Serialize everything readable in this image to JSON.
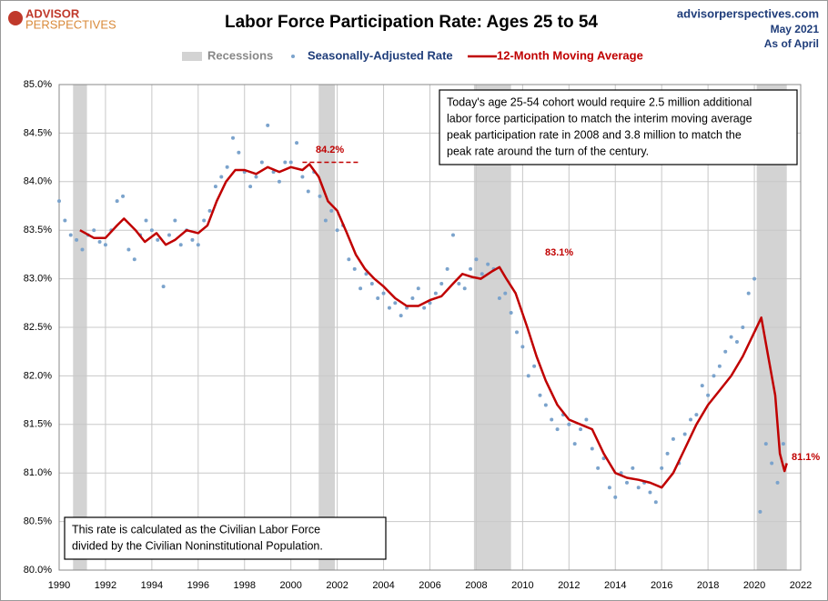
{
  "chart_data": {
    "type": "scatter-line",
    "title": "Labor Force Participation Rate: Ages 25 to 54",
    "logo": [
      "ADVISOR",
      "PERSPECTIVES"
    ],
    "source": [
      "advisorperspectives.com",
      "May 2021",
      "As of April"
    ],
    "recessions_label": "Recessions",
    "recession_color": "#d3d3d3",
    "recessions": [
      [
        1990.6,
        1991.2
      ],
      [
        2001.2,
        2001.9
      ],
      [
        2007.9,
        2009.5
      ],
      [
        2020.1,
        2021.4
      ]
    ],
    "xlim": [
      1990,
      2022
    ],
    "xticks": [
      1990,
      1992,
      1994,
      1996,
      1998,
      2000,
      2002,
      2004,
      2006,
      2008,
      2010,
      2012,
      2014,
      2016,
      2018,
      2020,
      2022
    ],
    "ylim": [
      80,
      85
    ],
    "yticks": [
      {
        "value": 80,
        "label": "80.0%"
      },
      {
        "value": 80.5,
        "label": "80.5%"
      },
      {
        "value": 81,
        "label": "81.0%"
      },
      {
        "value": 81.5,
        "label": "81.5%"
      },
      {
        "value": 82,
        "label": "82.0%"
      },
      {
        "value": 82.5,
        "label": "82.5%"
      },
      {
        "value": 83,
        "label": "83.0%"
      },
      {
        "value": 83.5,
        "label": "83.5%"
      },
      {
        "value": 84,
        "label": "84.0%"
      },
      {
        "value": 84.5,
        "label": "84.5%"
      },
      {
        "value": 85,
        "label": "85.0%"
      }
    ],
    "grid": true,
    "series": [
      {
        "name": "Seasonally-Adjusted Rate",
        "kind": "scatter",
        "color": "#7ba3cc",
        "x": [
          1990.0,
          1990.25,
          1990.5,
          1990.75,
          1991.0,
          1991.25,
          1991.5,
          1991.75,
          1992.0,
          1992.25,
          1992.5,
          1992.75,
          1993.0,
          1993.25,
          1993.5,
          1993.75,
          1994.0,
          1994.25,
          1994.5,
          1994.75,
          1995.0,
          1995.25,
          1995.5,
          1995.75,
          1996.0,
          1996.25,
          1996.5,
          1996.75,
          1997.0,
          1997.25,
          1997.5,
          1997.75,
          1998.0,
          1998.25,
          1998.5,
          1998.75,
          1999.0,
          1999.25,
          1999.5,
          1999.75,
          2000.0,
          2000.25,
          2000.5,
          2000.75,
          2001.0,
          2001.25,
          2001.5,
          2001.75,
          2002.0,
          2002.25,
          2002.5,
          2002.75,
          2003.0,
          2003.25,
          2003.5,
          2003.75,
          2004.0,
          2004.25,
          2004.5,
          2004.75,
          2005.0,
          2005.25,
          2005.5,
          2005.75,
          2006.0,
          2006.25,
          2006.5,
          2006.75,
          2007.0,
          2007.25,
          2007.5,
          2007.75,
          2008.0,
          2008.25,
          2008.5,
          2008.75,
          2009.0,
          2009.25,
          2009.5,
          2009.75,
          2010.0,
          2010.25,
          2010.5,
          2010.75,
          2011.0,
          2011.25,
          2011.5,
          2011.75,
          2012.0,
          2012.25,
          2012.5,
          2012.75,
          2013.0,
          2013.25,
          2013.5,
          2013.75,
          2014.0,
          2014.25,
          2014.5,
          2014.75,
          2015.0,
          2015.25,
          2015.5,
          2015.75,
          2016.0,
          2016.25,
          2016.5,
          2016.75,
          2017.0,
          2017.25,
          2017.5,
          2017.75,
          2018.0,
          2018.25,
          2018.5,
          2018.75,
          2019.0,
          2019.25,
          2019.5,
          2019.75,
          2020.0,
          2020.25,
          2020.5,
          2020.75,
          2021.0,
          2021.25
        ],
        "values": [
          83.8,
          83.6,
          83.45,
          83.4,
          83.3,
          83.45,
          83.5,
          83.38,
          83.35,
          83.5,
          83.8,
          83.85,
          83.3,
          83.2,
          83.45,
          83.6,
          83.5,
          83.4,
          82.92,
          83.45,
          83.6,
          83.35,
          83.5,
          83.4,
          83.35,
          83.6,
          83.7,
          83.95,
          84.05,
          84.15,
          84.45,
          84.3,
          84.1,
          83.95,
          84.05,
          84.2,
          84.58,
          84.1,
          84.0,
          84.2,
          84.2,
          84.4,
          84.05,
          83.9,
          84.1,
          83.85,
          83.6,
          83.7,
          83.5,
          83.55,
          83.2,
          83.1,
          82.9,
          83.05,
          82.95,
          82.8,
          82.85,
          82.7,
          82.75,
          82.62,
          82.7,
          82.8,
          82.9,
          82.7,
          82.75,
          82.85,
          82.95,
          83.1,
          83.45,
          82.95,
          82.9,
          83.1,
          83.2,
          83.05,
          83.15,
          83.1,
          82.8,
          82.85,
          82.65,
          82.45,
          82.3,
          82.0,
          82.1,
          81.8,
          81.7,
          81.55,
          81.45,
          81.6,
          81.5,
          81.3,
          81.45,
          81.55,
          81.25,
          81.05,
          81.15,
          80.85,
          80.75,
          81.0,
          80.9,
          81.05,
          80.85,
          80.9,
          80.8,
          80.7,
          81.05,
          81.2,
          81.35,
          81.1,
          81.4,
          81.55,
          81.6,
          81.9,
          81.8,
          82.0,
          82.1,
          82.25,
          82.4,
          82.35,
          82.5,
          82.85,
          83.0,
          80.6,
          81.3,
          81.1,
          80.9,
          81.3
        ]
      },
      {
        "name": "12-Month Moving Average",
        "kind": "line",
        "color": "#c00000",
        "x": [
          1990.9,
          1991.5,
          1992.0,
          1992.5,
          1992.8,
          1993.3,
          1993.7,
          1994.2,
          1994.6,
          1995.0,
          1995.5,
          1996.0,
          1996.4,
          1996.8,
          1997.2,
          1997.6,
          1998.0,
          1998.5,
          1999.0,
          1999.5,
          2000.0,
          2000.5,
          2000.8,
          2001.2,
          2001.6,
          2002.0,
          2002.4,
          2002.8,
          2003.2,
          2003.6,
          2004.0,
          2004.5,
          2005.0,
          2005.5,
          2006.0,
          2006.5,
          2007.0,
          2007.4,
          2007.8,
          2008.2,
          2008.7,
          2009.0,
          2009.3,
          2009.7,
          2010.2,
          2010.6,
          2011.0,
          2011.5,
          2012.0,
          2012.5,
          2013.0,
          2013.5,
          2014.0,
          2014.5,
          2015.0,
          2015.5,
          2016.0,
          2016.5,
          2017.0,
          2017.5,
          2018.0,
          2018.5,
          2019.0,
          2019.5,
          2020.0,
          2020.3,
          2020.6,
          2020.9,
          2021.1,
          2021.3,
          2021.4
        ],
        "values": [
          83.5,
          83.42,
          83.42,
          83.55,
          83.62,
          83.5,
          83.38,
          83.47,
          83.35,
          83.4,
          83.5,
          83.47,
          83.55,
          83.8,
          84.0,
          84.12,
          84.12,
          84.08,
          84.15,
          84.1,
          84.15,
          84.12,
          84.18,
          84.05,
          83.8,
          83.7,
          83.48,
          83.25,
          83.1,
          83.0,
          82.92,
          82.8,
          82.72,
          82.72,
          82.78,
          82.82,
          82.95,
          83.05,
          83.02,
          83.0,
          83.08,
          83.12,
          83.0,
          82.85,
          82.5,
          82.2,
          81.95,
          81.7,
          81.55,
          81.5,
          81.45,
          81.2,
          81.0,
          80.95,
          80.93,
          80.9,
          80.85,
          81.0,
          81.25,
          81.5,
          81.7,
          81.85,
          82.0,
          82.2,
          82.45,
          82.6,
          82.2,
          81.8,
          81.2,
          81.02,
          81.1
        ]
      }
    ],
    "peak_line": {
      "value": 84.2,
      "x": [
        2000.5,
        2003.0
      ],
      "label": "84.2%"
    },
    "annotations": [
      "83.1%",
      "81.1%"
    ],
    "note_box": [
      "Today's age 25-54  cohort would require 2.5 million additional",
      "labor force participation to match the interim moving average",
      "peak participation rate in 2008  and 3.8 million to match the",
      "peak rate around the turn of the century."
    ],
    "footnote_box": [
      "This rate is calculated as the Civilian Labor Force",
      "divided by the Civilian Noninstitutional Population."
    ]
  }
}
